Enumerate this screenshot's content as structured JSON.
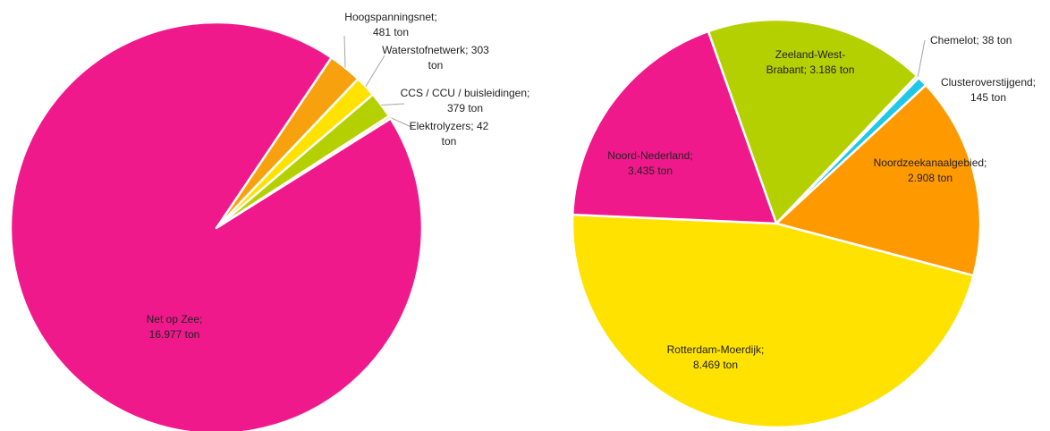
{
  "chart_data": [
    {
      "type": "pie",
      "categories": [
        "Hoogspanningsnet;",
        "Waterstofnetwerk;",
        "CCS / CCU / buisleidingen;",
        "Elektrolyzers;",
        "Net op Zee;"
      ],
      "values": [
        481,
        303,
        379,
        42,
        16977
      ],
      "value_labels": [
        "481 ton",
        "303 ton",
        "379 ton",
        "42 ton",
        "16.977 ton"
      ],
      "colors": [
        "#f7a10f",
        "#ffe200",
        "#b5d000",
        "#d9e87a",
        "#f0198c"
      ]
    },
    {
      "type": "pie",
      "categories": [
        "Zeeland-West-Brabant;",
        "Chemelot;",
        "Clusteroverstijgend;",
        "Noordzeekanaalgebied;",
        "Rotterdam-Moerdijk;",
        "Noord-Nederland;"
      ],
      "values": [
        3186,
        38,
        145,
        2908,
        8469,
        3435
      ],
      "value_labels": [
        "3.186 ton",
        "38 ton",
        "145 ton",
        "2.908 ton",
        "8.469 ton",
        "3.435 ton"
      ],
      "colors": [
        "#b5d000",
        "#7fdcec",
        "#1ec8e6",
        "#ff9900",
        "#ffe200",
        "#f0198c"
      ]
    }
  ]
}
